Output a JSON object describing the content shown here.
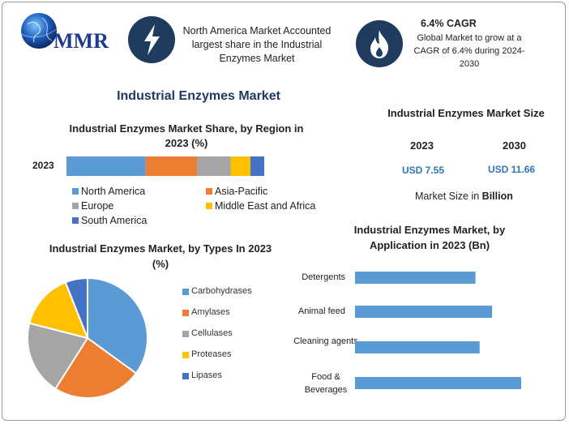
{
  "brand": {
    "name": "MMR"
  },
  "header": {
    "callout_left": "North America Market Accounted largest share in the Industrial Enzymes Market",
    "cagr_title": "6.4% CAGR",
    "cagr_text": "Global Market to grow at a CAGR of 6.4% during 2024-2030"
  },
  "main_title": "Industrial Enzymes Market",
  "market_size": {
    "title": "Industrial Enzymes Market Size",
    "year_a": "2023",
    "year_b": "2030",
    "value_a": "USD 7.55",
    "value_b": "USD 11.66",
    "unit_note_prefix": "Market Size in ",
    "unit_note_bold": "Billion"
  },
  "colors": {
    "blue": "#5b9bd5",
    "orange": "#ed7d31",
    "gray": "#a5a5a5",
    "yellow": "#ffc000",
    "darkblue": "#4472c4",
    "navy": "#1f3c5e",
    "value_blue": "#2e75b6"
  },
  "chart_data": [
    {
      "type": "bar",
      "orientation": "horizontal-stacked",
      "title": "Industrial Enzymes Market Share, by Region in 2023 (%)",
      "categories": [
        "2023"
      ],
      "series": [
        {
          "name": "North America",
          "values": [
            40
          ]
        },
        {
          "name": "Asia-Pacific",
          "values": [
            26
          ]
        },
        {
          "name": "Europe",
          "values": [
            17
          ]
        },
        {
          "name": "Middle East and Africa",
          "values": [
            10
          ]
        },
        {
          "name": "South America",
          "values": [
            7
          ]
        }
      ],
      "legend": "bottom"
    },
    {
      "type": "pie",
      "title": "Industrial Enzymes Market, by Types In 2023 (%)",
      "categories": [
        "Carbohydrases",
        "Amylases",
        "Cellulases",
        "Proteases",
        "Lipases"
      ],
      "values": [
        35,
        24,
        20,
        15,
        6
      ],
      "legend": "right"
    },
    {
      "type": "bar",
      "orientation": "horizontal",
      "title": "Industrial Enzymes Market, by Application in 2023 (Bn)",
      "categories": [
        "Detergents",
        "Animal feed",
        "Cleaning agents",
        "Food & Beverages"
      ],
      "values": [
        1.45,
        1.65,
        1.5,
        2.0
      ],
      "xlim": [
        0,
        2.3
      ]
    }
  ]
}
